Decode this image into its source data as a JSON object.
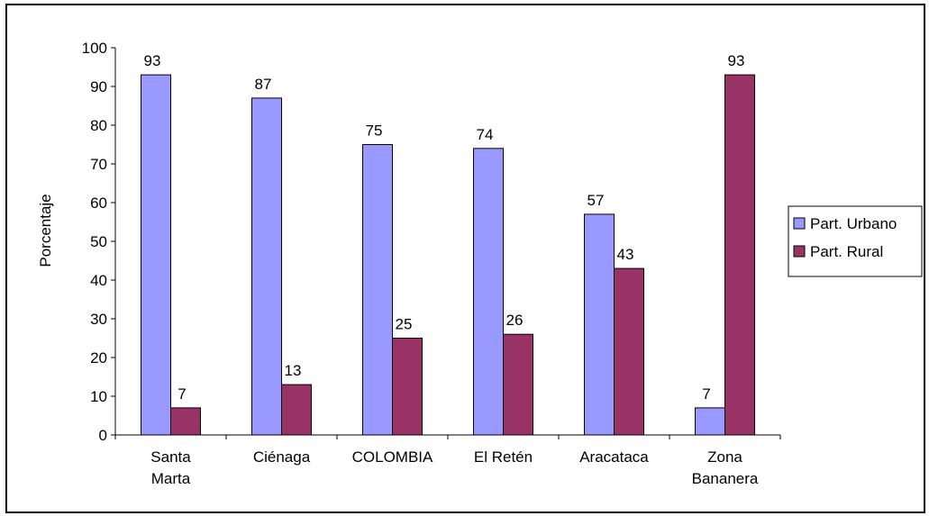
{
  "chart_data": {
    "type": "bar",
    "title": "",
    "xlabel": "",
    "ylabel": "Porcentaje",
    "ylim": [
      0,
      100
    ],
    "yticks": [
      0,
      10,
      20,
      30,
      40,
      50,
      60,
      70,
      80,
      90,
      100
    ],
    "categories": [
      [
        "Santa",
        "Marta"
      ],
      [
        "Ciénaga"
      ],
      [
        "COLOMBIA"
      ],
      [
        "El Retén"
      ],
      [
        "Aracataca"
      ],
      [
        "Zona",
        "Bananera"
      ]
    ],
    "series": [
      {
        "name": "Part. Urbano",
        "color": "#9999ff",
        "values": [
          93,
          87,
          75,
          74,
          57,
          7
        ]
      },
      {
        "name": "Part. Rural",
        "color": "#993366",
        "values": [
          7,
          13,
          25,
          26,
          43,
          93
        ]
      }
    ],
    "data_labels": true,
    "grid": false,
    "legend": "right"
  }
}
